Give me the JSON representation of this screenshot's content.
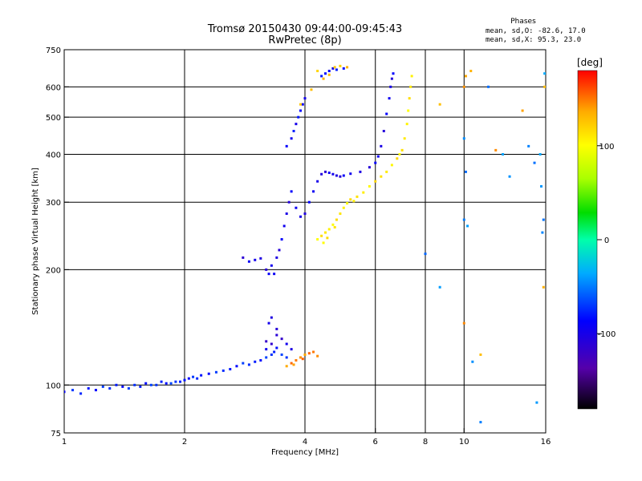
{
  "chart_data": {
    "type": "scatter",
    "title": "Tromsø 20150430 09:44:00-09:45:43",
    "subtitle": "RwPretec (8p)",
    "phase_box": {
      "title": "Phases",
      "line_o": "mean, sd,O: -82.6, 17.0",
      "line_x": "mean, sd,X:  95.3, 23.0"
    },
    "xlabel": "Frequency [MHz]",
    "ylabel": "Stationary phase Virtual Height [km]",
    "xscale": "log",
    "yscale": "log",
    "xlim": [
      1,
      16
    ],
    "ylim": [
      75,
      750
    ],
    "x_ticks": [
      1,
      2,
      4,
      6,
      8,
      10,
      16
    ],
    "x_tick_labels": [
      "1",
      "2",
      "4",
      "6",
      "8",
      "10",
      "16"
    ],
    "y_ticks": [
      75,
      100,
      200,
      300,
      400,
      500,
      600,
      750
    ],
    "y_tick_labels": [
      "75",
      "100",
      "200",
      "300",
      "400",
      "500",
      "600",
      "750"
    ],
    "x_grid": [
      2,
      4,
      6,
      8,
      10
    ],
    "y_grid": [
      100,
      200,
      300,
      400,
      500,
      600
    ],
    "colorbar": {
      "label": "[deg]",
      "range": [
        -180,
        180
      ],
      "ticks": [
        100,
        0,
        -100
      ],
      "tick_labels": [
        "100",
        "0",
        "-100"
      ]
    },
    "series": [
      {
        "color_phase": -90,
        "points": [
          [
            1.0,
            96
          ],
          [
            1.05,
            97
          ],
          [
            1.1,
            95
          ],
          [
            1.15,
            98
          ],
          [
            1.2,
            97
          ],
          [
            1.25,
            99
          ],
          [
            1.3,
            98
          ],
          [
            1.35,
            100
          ],
          [
            1.4,
            99
          ],
          [
            1.45,
            98
          ],
          [
            1.5,
            100
          ],
          [
            1.55,
            99
          ],
          [
            1.6,
            101
          ],
          [
            1.65,
            100
          ],
          [
            1.7,
            100
          ],
          [
            1.75,
            102
          ],
          [
            1.8,
            101
          ],
          [
            1.85,
            101
          ],
          [
            1.9,
            102
          ],
          [
            1.95,
            102
          ],
          [
            2.0,
            103
          ],
          [
            2.05,
            104
          ],
          [
            2.1,
            105
          ],
          [
            2.15,
            104
          ],
          [
            2.2,
            106
          ],
          [
            2.3,
            107
          ],
          [
            2.4,
            108
          ],
          [
            2.5,
            109
          ],
          [
            2.6,
            110
          ],
          [
            2.7,
            112
          ],
          [
            2.8,
            114
          ],
          [
            2.9,
            113
          ],
          [
            3.0,
            115
          ],
          [
            3.1,
            116
          ],
          [
            3.2,
            118
          ],
          [
            3.3,
            120
          ],
          [
            3.35,
            122
          ],
          [
            3.4,
            125
          ],
          [
            3.5,
            120
          ],
          [
            3.6,
            118
          ]
        ]
      },
      {
        "color_phase": -115,
        "points": [
          [
            3.2,
            130
          ],
          [
            3.25,
            145
          ],
          [
            3.3,
            150
          ],
          [
            3.4,
            135
          ],
          [
            3.5,
            132
          ],
          [
            3.6,
            128
          ],
          [
            3.7,
            124
          ],
          [
            3.4,
            140
          ],
          [
            3.3,
            128
          ],
          [
            3.2,
            124
          ]
        ]
      },
      {
        "color_phase": 150,
        "points": [
          [
            3.6,
            112
          ],
          [
            3.7,
            114
          ],
          [
            3.8,
            116
          ],
          [
            3.9,
            118
          ],
          [
            4.0,
            120
          ],
          [
            4.1,
            121
          ],
          [
            4.2,
            122
          ],
          [
            4.3,
            119
          ],
          [
            3.75,
            113
          ],
          [
            3.95,
            117
          ]
        ]
      },
      {
        "color_phase": -110,
        "points": [
          [
            2.8,
            215
          ],
          [
            2.9,
            210
          ],
          [
            3.0,
            212
          ],
          [
            3.1,
            214
          ],
          [
            3.2,
            200
          ],
          [
            3.25,
            195
          ],
          [
            3.3,
            205
          ],
          [
            3.4,
            215
          ],
          [
            3.45,
            225
          ],
          [
            3.5,
            240
          ],
          [
            3.55,
            260
          ],
          [
            3.6,
            280
          ],
          [
            3.65,
            300
          ],
          [
            3.7,
            320
          ],
          [
            3.8,
            290
          ],
          [
            3.9,
            275
          ],
          [
            4.0,
            280
          ],
          [
            4.1,
            300
          ],
          [
            4.2,
            320
          ],
          [
            4.3,
            340
          ],
          [
            4.4,
            355
          ],
          [
            4.5,
            360
          ],
          [
            4.6,
            358
          ],
          [
            4.7,
            355
          ],
          [
            4.8,
            352
          ],
          [
            4.9,
            350
          ],
          [
            5.0,
            352
          ],
          [
            5.2,
            356
          ],
          [
            5.5,
            360
          ],
          [
            5.8,
            370
          ],
          [
            6.0,
            380
          ],
          [
            6.1,
            395
          ],
          [
            6.2,
            420
          ],
          [
            6.3,
            460
          ],
          [
            6.4,
            510
          ],
          [
            6.5,
            560
          ],
          [
            6.55,
            600
          ],
          [
            6.6,
            630
          ],
          [
            6.65,
            650
          ],
          [
            3.35,
            195
          ]
        ]
      },
      {
        "color_phase": 110,
        "points": [
          [
            4.3,
            240
          ],
          [
            4.4,
            245
          ],
          [
            4.5,
            250
          ],
          [
            4.6,
            255
          ],
          [
            4.7,
            262
          ],
          [
            4.8,
            270
          ],
          [
            4.9,
            280
          ],
          [
            5.0,
            290
          ],
          [
            5.1,
            298
          ],
          [
            5.2,
            305
          ],
          [
            5.4,
            310
          ],
          [
            5.6,
            318
          ],
          [
            5.8,
            330
          ],
          [
            6.0,
            340
          ],
          [
            6.2,
            350
          ],
          [
            6.4,
            360
          ],
          [
            6.6,
            375
          ],
          [
            6.8,
            390
          ],
          [
            7.0,
            410
          ],
          [
            7.1,
            440
          ],
          [
            7.2,
            480
          ],
          [
            7.25,
            520
          ],
          [
            7.3,
            560
          ],
          [
            7.35,
            600
          ],
          [
            7.4,
            640
          ],
          [
            4.45,
            235
          ],
          [
            4.55,
            242
          ],
          [
            4.75,
            258
          ],
          [
            5.3,
            302
          ],
          [
            6.9,
            400
          ]
        ]
      },
      {
        "color_phase": -100,
        "points": [
          [
            3.8,
            480
          ],
          [
            3.85,
            500
          ],
          [
            3.9,
            520
          ],
          [
            3.95,
            540
          ],
          [
            4.0,
            560
          ],
          [
            4.4,
            640
          ],
          [
            4.5,
            650
          ],
          [
            4.6,
            660
          ],
          [
            4.7,
            670
          ],
          [
            4.8,
            665
          ],
          [
            5.0,
            670
          ],
          [
            3.6,
            420
          ],
          [
            3.7,
            440
          ],
          [
            3.75,
            460
          ]
        ]
      },
      {
        "color_phase": 130,
        "points": [
          [
            4.3,
            660
          ],
          [
            4.45,
            630
          ],
          [
            4.6,
            645
          ],
          [
            4.75,
            675
          ],
          [
            4.9,
            680
          ],
          [
            5.1,
            675
          ],
          [
            4.15,
            590
          ],
          [
            3.9,
            540
          ]
        ]
      },
      {
        "color_phase": -60,
        "points": [
          [
            8.0,
            220
          ],
          [
            8.7,
            180
          ],
          [
            10.0,
            440
          ],
          [
            10.0,
            270
          ],
          [
            10.1,
            360
          ],
          [
            10.2,
            260
          ],
          [
            10.5,
            115
          ],
          [
            11.0,
            80
          ],
          [
            11.5,
            600
          ],
          [
            12.5,
            400
          ],
          [
            13.0,
            350
          ],
          [
            14.5,
            420
          ],
          [
            15.0,
            380
          ],
          [
            15.5,
            400
          ],
          [
            15.6,
            330
          ],
          [
            15.7,
            250
          ],
          [
            15.8,
            270
          ],
          [
            15.9,
            650
          ],
          [
            15.2,
            90
          ]
        ]
      },
      {
        "color_phase": 140,
        "points": [
          [
            8.7,
            540
          ],
          [
            10.0,
            600
          ],
          [
            10.1,
            640
          ],
          [
            10.4,
            660
          ],
          [
            11.0,
            120
          ],
          [
            12.0,
            410
          ],
          [
            14.0,
            520
          ],
          [
            15.8,
            180
          ],
          [
            15.9,
            600
          ],
          [
            10.0,
            145
          ]
        ]
      }
    ]
  }
}
